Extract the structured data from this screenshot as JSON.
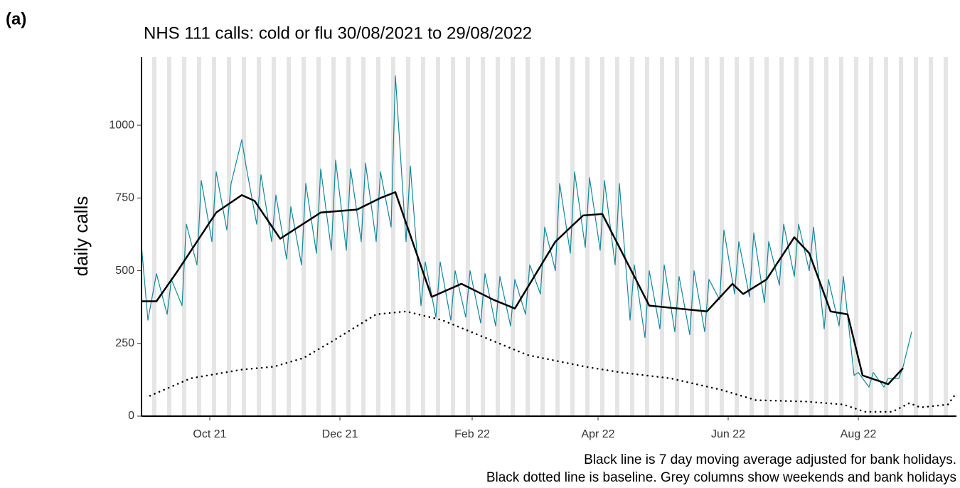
{
  "panel_label": "(a)",
  "chart_data": {
    "type": "line",
    "title": "NHS 111 calls: cold or flu 30/08/2021 to 29/08/2022",
    "ylabel": "daily calls",
    "notes": [
      "Black line is 7 day moving average adjusted for bank holidays.",
      "Black dotted line is baseline. Grey columns show weekends and bank holidays"
    ],
    "xlim": [
      "2021-08-30",
      "2022-09-16"
    ],
    "xticks": [
      {
        "value": "2021-10-01",
        "label": "Oct 21"
      },
      {
        "value": "2021-12-01",
        "label": "Dec 21"
      },
      {
        "value": "2022-02-01",
        "label": "Feb 22"
      },
      {
        "value": "2022-04-01",
        "label": "Apr 22"
      },
      {
        "value": "2022-06-01",
        "label": "Jun 22"
      },
      {
        "value": "2022-08-01",
        "label": "Aug 22"
      }
    ],
    "ylim": [
      0,
      1235
    ],
    "yticks": [
      0,
      250,
      500,
      750,
      1000
    ],
    "weekend_shading": true,
    "shading_color": "#e5e5e5",
    "series": [
      {
        "color": "#13879a",
        "width": 1.2,
        "style": "solid",
        "x": [
          "2021-08-30",
          "2021-09-02",
          "2021-09-06",
          "2021-09-11",
          "2021-09-13",
          "2021-09-18",
          "2021-09-20",
          "2021-09-25",
          "2021-09-27",
          "2021-10-02",
          "2021-10-04",
          "2021-10-09",
          "2021-10-11",
          "2021-10-16",
          "2021-10-18",
          "2021-10-23",
          "2021-10-25",
          "2021-10-30",
          "2021-11-01",
          "2021-11-06",
          "2021-11-08",
          "2021-11-13",
          "2021-11-15",
          "2021-11-20",
          "2021-11-22",
          "2021-11-27",
          "2021-11-29",
          "2021-12-04",
          "2021-12-06",
          "2021-12-11",
          "2021-12-13",
          "2021-12-18",
          "2021-12-20",
          "2021-12-25",
          "2021-12-27",
          "2022-01-01",
          "2022-01-03",
          "2022-01-08",
          "2022-01-10",
          "2022-01-15",
          "2022-01-17",
          "2022-01-22",
          "2022-01-24",
          "2022-01-29",
          "2022-01-31",
          "2022-02-05",
          "2022-02-07",
          "2022-02-12",
          "2022-02-14",
          "2022-02-19",
          "2022-02-21",
          "2022-02-26",
          "2022-02-28",
          "2022-03-05",
          "2022-03-07",
          "2022-03-12",
          "2022-03-14",
          "2022-03-19",
          "2022-03-21",
          "2022-03-26",
          "2022-03-28",
          "2022-04-02",
          "2022-04-04",
          "2022-04-09",
          "2022-04-11",
          "2022-04-16",
          "2022-04-18",
          "2022-04-23",
          "2022-04-25",
          "2022-04-30",
          "2022-05-02",
          "2022-05-07",
          "2022-05-09",
          "2022-05-14",
          "2022-05-16",
          "2022-05-21",
          "2022-05-23",
          "2022-05-28",
          "2022-05-30",
          "2022-06-04",
          "2022-06-06",
          "2022-06-11",
          "2022-06-13",
          "2022-06-18",
          "2022-06-20",
          "2022-06-25",
          "2022-06-27",
          "2022-07-02",
          "2022-07-04",
          "2022-07-09",
          "2022-07-11",
          "2022-07-16",
          "2022-07-18",
          "2022-07-23",
          "2022-07-25",
          "2022-07-30",
          "2022-08-01",
          "2022-08-06",
          "2022-08-08",
          "2022-08-13",
          "2022-08-15",
          "2022-08-20",
          "2022-08-22",
          "2022-08-26"
        ],
        "values": [
          585,
          330,
          490,
          350,
          470,
          380,
          660,
          520,
          810,
          600,
          840,
          640,
          800,
          950,
          860,
          660,
          830,
          600,
          760,
          540,
          720,
          520,
          800,
          560,
          850,
          570,
          880,
          570,
          850,
          600,
          870,
          600,
          840,
          650,
          1170,
          600,
          860,
          380,
          530,
          340,
          530,
          330,
          500,
          340,
          500,
          320,
          490,
          310,
          480,
          310,
          470,
          350,
          520,
          420,
          650,
          500,
          800,
          560,
          840,
          580,
          820,
          570,
          810,
          520,
          800,
          330,
          520,
          270,
          500,
          300,
          520,
          290,
          480,
          280,
          500,
          290,
          470,
          400,
          640,
          420,
          600,
          410,
          630,
          390,
          600,
          450,
          660,
          480,
          660,
          500,
          650,
          300,
          470,
          310,
          480,
          140,
          150,
          100,
          150,
          100,
          130,
          130,
          170,
          290
        ]
      },
      {
        "color": "#000000",
        "width": 2.5,
        "style": "solid",
        "x": [
          "2021-08-30",
          "2021-09-06",
          "2021-09-16",
          "2021-10-04",
          "2021-10-16",
          "2021-10-22",
          "2021-11-03",
          "2021-11-22",
          "2021-12-09",
          "2021-12-20",
          "2021-12-27",
          "2022-01-13",
          "2022-01-27",
          "2022-02-11",
          "2022-02-21",
          "2022-03-12",
          "2022-03-25",
          "2022-04-03",
          "2022-04-25",
          "2022-05-22",
          "2022-06-03",
          "2022-06-08",
          "2022-06-19",
          "2022-07-02",
          "2022-07-09",
          "2022-07-19",
          "2022-07-27",
          "2022-08-03",
          "2022-08-15",
          "2022-08-22"
        ],
        "values": [
          395,
          395,
          500,
          700,
          760,
          740,
          610,
          700,
          710,
          750,
          770,
          410,
          455,
          400,
          370,
          600,
          690,
          695,
          380,
          360,
          455,
          420,
          470,
          615,
          560,
          360,
          350,
          140,
          110,
          165
        ]
      },
      {
        "color": "#000000",
        "width": 2.5,
        "style": "dotted",
        "x": [
          "2021-09-03",
          "2021-09-22",
          "2021-10-16",
          "2021-10-31",
          "2021-11-14",
          "2021-11-28",
          "2021-12-18",
          "2022-01-01",
          "2022-01-18",
          "2022-02-07",
          "2022-02-27",
          "2022-03-26",
          "2022-04-12",
          "2022-05-05",
          "2022-05-29",
          "2022-06-14",
          "2022-07-08",
          "2022-07-25",
          "2022-08-04",
          "2022-08-17",
          "2022-08-25",
          "2022-08-30",
          "2022-09-12",
          "2022-09-16"
        ],
        "values": [
          70,
          130,
          160,
          170,
          200,
          260,
          350,
          360,
          330,
          270,
          210,
          170,
          150,
          130,
          90,
          55,
          50,
          40,
          15,
          15,
          45,
          30,
          40,
          80
        ]
      }
    ]
  }
}
